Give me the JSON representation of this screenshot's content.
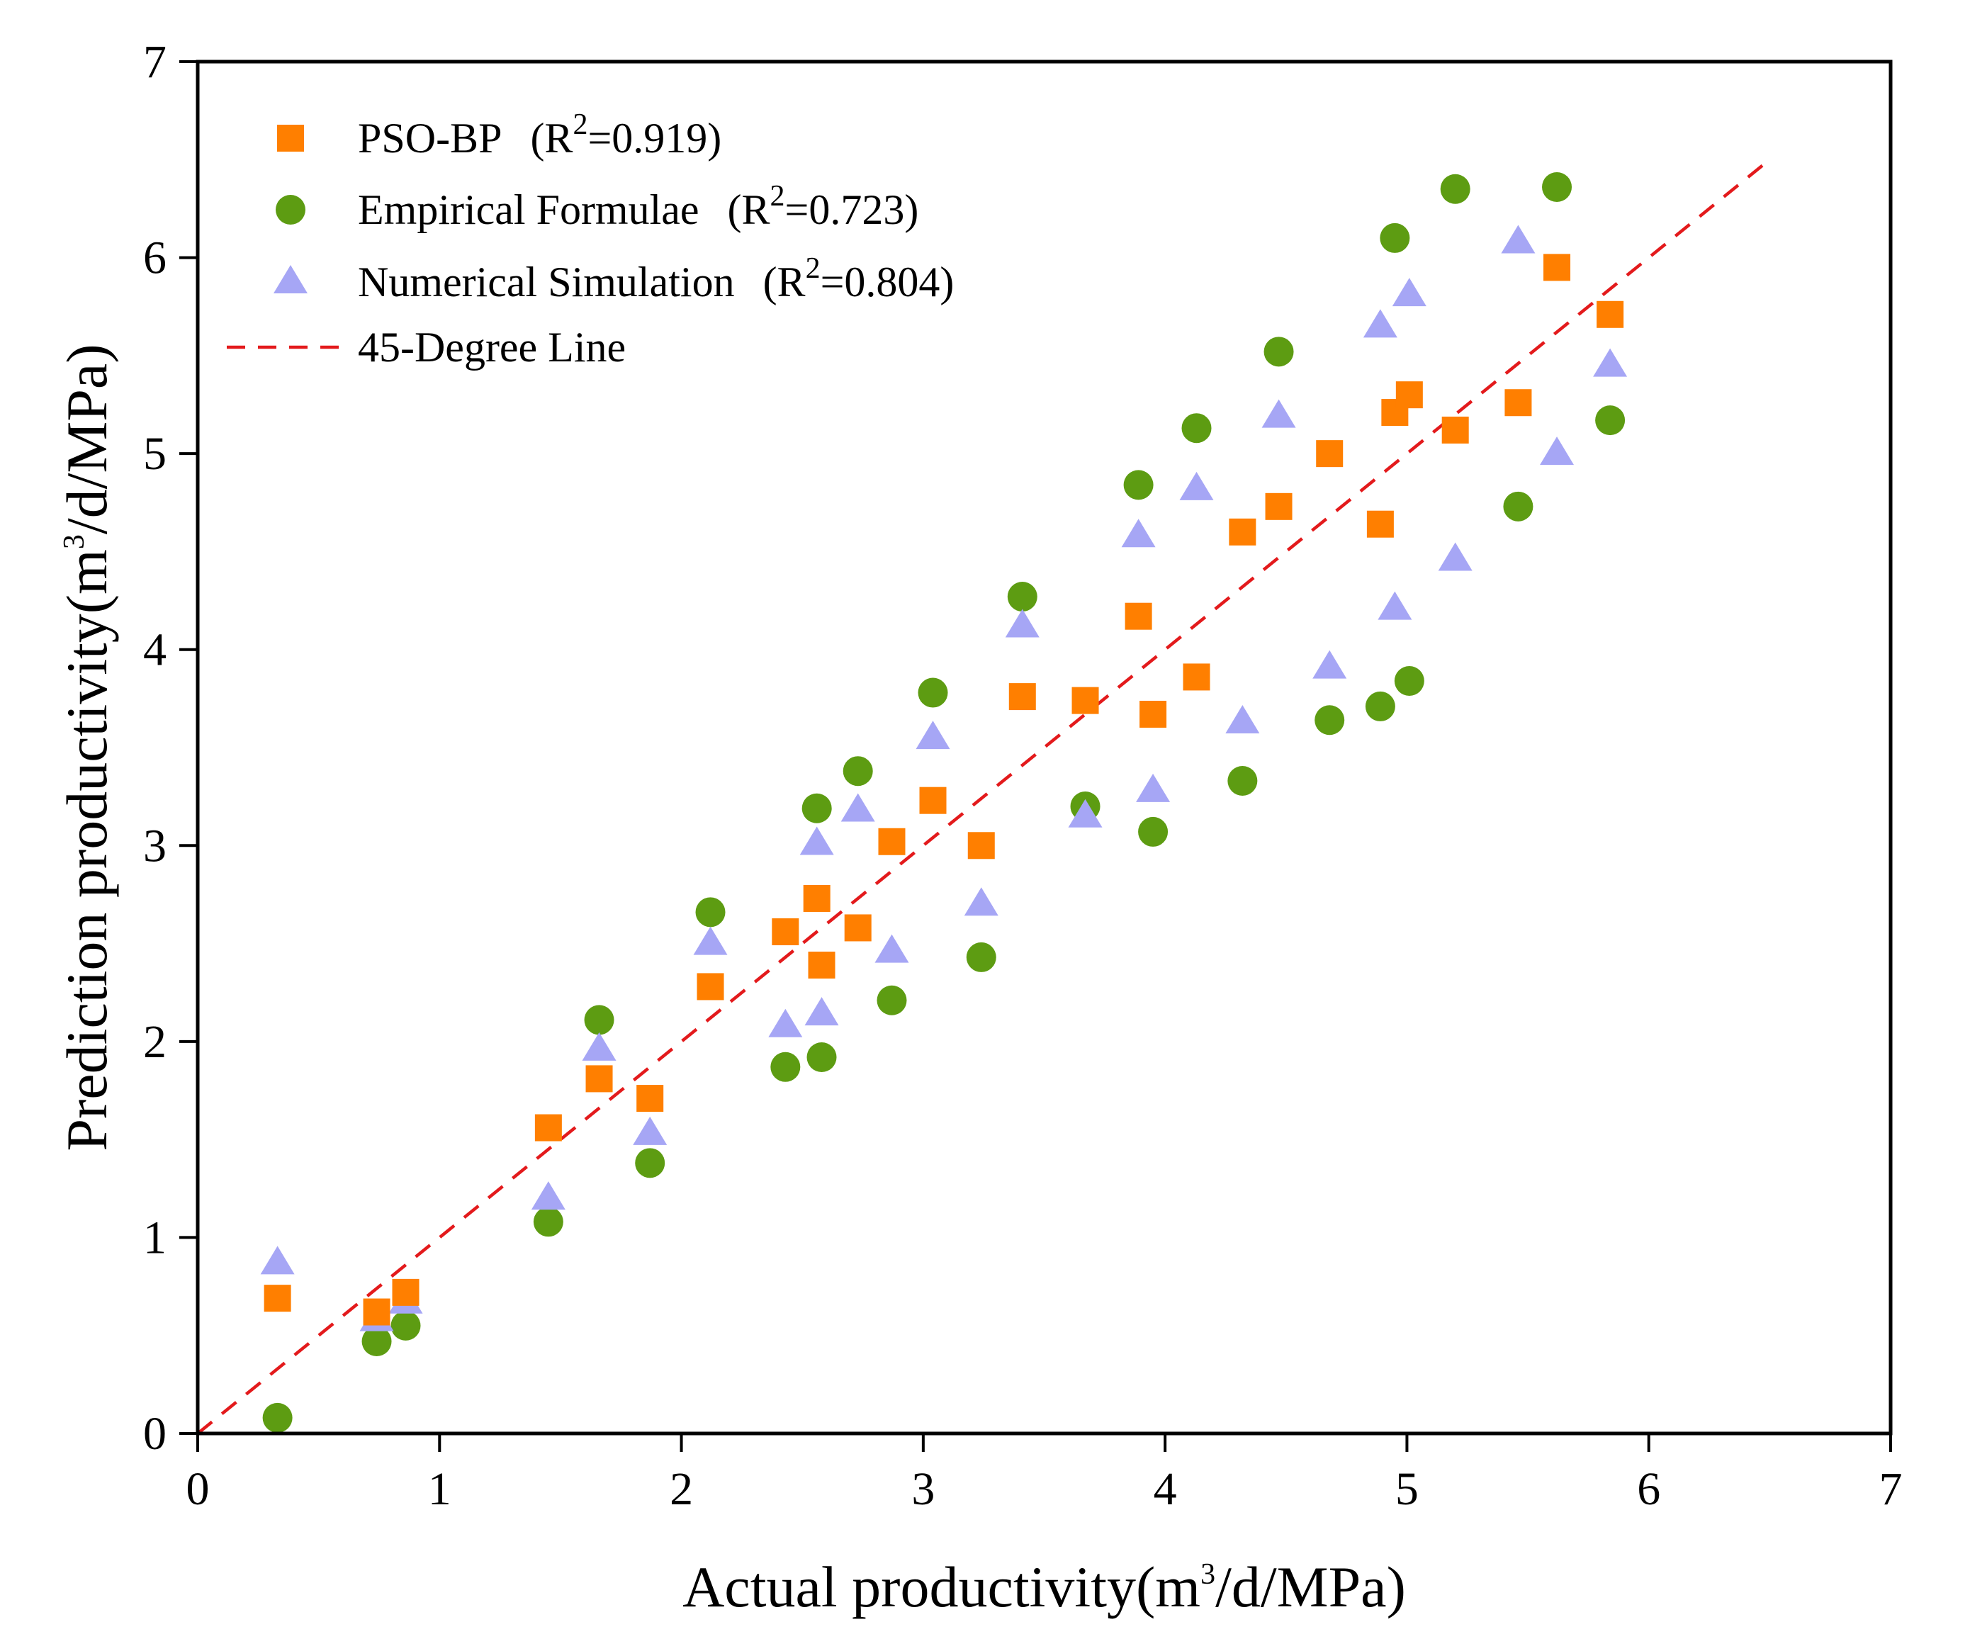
{
  "chart_data": {
    "type": "scatter",
    "title": "",
    "xlabel": {
      "main": "Actual productivity(m",
      "sup": "3",
      "tail": "/d/MPa)"
    },
    "ylabel": {
      "main": "Prediction productivity(m",
      "sup": "3",
      "tail": "/d/MPa)"
    },
    "xlim": [
      0,
      7
    ],
    "ylim": [
      0,
      7
    ],
    "xticks": [
      0,
      1,
      2,
      3,
      4,
      5,
      6,
      7
    ],
    "yticks": [
      0,
      1,
      2,
      3,
      4,
      5,
      6,
      7
    ],
    "x_tick_labels": [
      "0",
      "1",
      "2",
      "3",
      "4",
      "5",
      "6",
      "7"
    ],
    "y_tick_labels": [
      "0",
      "1",
      "2",
      "3",
      "4",
      "5",
      "6",
      "7"
    ],
    "grid": false,
    "legend_position": "top-left",
    "series": [
      {
        "name": "PSO-BP",
        "legend": {
          "name": "PSO-BP",
          "r2_prefix": "(R",
          "r2_sup": "2",
          "r2_suffix": "=0.919)"
        },
        "marker": "square",
        "color": "#ff7f00",
        "x": [
          0.33,
          0.74,
          0.86,
          1.45,
          1.66,
          1.87,
          2.12,
          2.43,
          2.56,
          2.58,
          2.73,
          2.87,
          3.04,
          3.24,
          3.41,
          3.67,
          3.89,
          3.95,
          4.13,
          4.32,
          4.47,
          4.68,
          4.89,
          4.95,
          5.01,
          5.2,
          5.46,
          5.62,
          5.84
        ],
        "y": [
          0.69,
          0.62,
          0.72,
          1.56,
          1.81,
          1.71,
          2.28,
          2.56,
          2.73,
          2.39,
          2.58,
          3.02,
          3.23,
          3.0,
          3.76,
          3.74,
          4.17,
          3.67,
          3.86,
          4.6,
          4.73,
          5.0,
          4.64,
          5.21,
          5.3,
          5.12,
          5.26,
          5.95,
          5.71
        ]
      },
      {
        "name": "Empirical Formulae",
        "legend": {
          "name": "Empirical Formulae",
          "r2_prefix": "(R",
          "r2_sup": "2",
          "r2_suffix": "=0.723)"
        },
        "marker": "circle",
        "color": "#5d9c12",
        "x": [
          0.33,
          0.74,
          0.86,
          1.45,
          1.66,
          1.87,
          2.12,
          2.43,
          2.56,
          2.58,
          2.73,
          2.87,
          3.04,
          3.24,
          3.41,
          3.67,
          3.89,
          3.95,
          4.13,
          4.32,
          4.47,
          4.68,
          4.89,
          4.95,
          5.01,
          5.2,
          5.46,
          5.62,
          5.84
        ],
        "y": [
          0.08,
          0.47,
          0.55,
          1.08,
          2.11,
          1.38,
          2.66,
          1.87,
          3.19,
          1.92,
          3.38,
          2.21,
          3.78,
          2.43,
          4.27,
          3.2,
          4.84,
          3.07,
          5.13,
          3.33,
          5.52,
          3.64,
          3.71,
          6.1,
          3.84,
          6.35,
          4.73,
          6.36,
          5.17
        ]
      },
      {
        "name": "Numerical Simulation",
        "legend": {
          "name": "Numerical Simulation",
          "r2_prefix": "(R",
          "r2_sup": "2",
          "r2_suffix": "=0.804)"
        },
        "marker": "triangle",
        "color": "#a6a6f5",
        "x": [
          0.33,
          0.74,
          0.86,
          1.45,
          1.66,
          1.87,
          2.12,
          2.43,
          2.56,
          2.58,
          2.73,
          2.87,
          3.04,
          3.24,
          3.41,
          3.67,
          3.89,
          3.95,
          4.13,
          4.32,
          4.47,
          4.68,
          4.89,
          4.95,
          5.01,
          5.2,
          5.46,
          5.62,
          5.84
        ],
        "y": [
          0.87,
          0.58,
          0.67,
          1.2,
          1.96,
          1.53,
          2.5,
          2.08,
          3.01,
          2.14,
          3.18,
          2.46,
          3.55,
          2.7,
          4.12,
          3.15,
          4.58,
          3.28,
          4.82,
          3.63,
          5.19,
          3.91,
          5.65,
          4.21,
          5.81,
          4.46,
          6.08,
          5.0,
          5.45
        ]
      }
    ],
    "reference_line": {
      "name": "45-Degree Line",
      "label": "45-Degree Line",
      "color": "#e31a1c",
      "style": "dashed",
      "x": [
        0,
        6.5
      ],
      "y": [
        0,
        6.5
      ]
    }
  }
}
